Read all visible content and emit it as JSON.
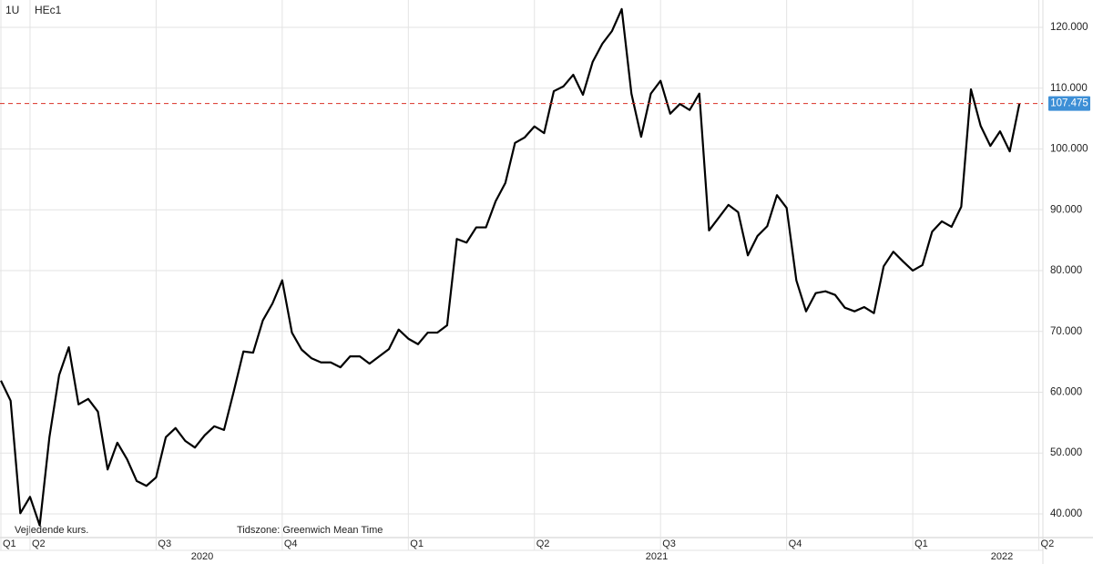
{
  "chart_data": {
    "type": "line",
    "header": [
      "1U",
      "HEc1"
    ],
    "notes": [
      "Vejledende kurs.",
      "Tidszone: Greenwich Mean Time"
    ],
    "categories": [
      "Q1",
      null,
      null,
      "Q2",
      null,
      null,
      null,
      null,
      null,
      null,
      null,
      null,
      null,
      null,
      null,
      null,
      "Q3",
      null,
      null,
      null,
      null,
      null,
      null,
      null,
      null,
      null,
      null,
      null,
      null,
      "Q4",
      null,
      null,
      null,
      null,
      null,
      null,
      null,
      null,
      null,
      null,
      null,
      null,
      "Q1",
      null,
      null,
      null,
      null,
      null,
      null,
      null,
      null,
      null,
      null,
      null,
      null,
      "Q2",
      null,
      null,
      null,
      null,
      null,
      null,
      null,
      null,
      null,
      null,
      null,
      null,
      "Q3",
      null,
      null,
      null,
      null,
      null,
      null,
      null,
      null,
      null,
      null,
      null,
      null,
      "Q4",
      null,
      null,
      null,
      null,
      null,
      null,
      null,
      null,
      null,
      null,
      null,
      null,
      "Q1",
      null,
      null,
      null,
      null,
      null,
      null,
      null,
      null,
      null,
      null,
      null,
      null,
      "Q2"
    ],
    "years": [
      "2020",
      "2021",
      "2022"
    ],
    "series": [
      {
        "name": "HEc1",
        "color": "#000000",
        "values": [
          61.9,
          58.6,
          40.1,
          42.8,
          38.1,
          52.6,
          62.8,
          67.4,
          58.0,
          58.9,
          56.8,
          47.3,
          51.7,
          49.0,
          45.4,
          44.6,
          46.0,
          52.6,
          54.1,
          52.0,
          50.9,
          52.9,
          54.4,
          53.8,
          60.1,
          66.7,
          66.5,
          71.8,
          74.6,
          78.4,
          69.8,
          67.0,
          65.6,
          64.9,
          64.9,
          64.1,
          65.9,
          65.9,
          64.7,
          65.9,
          67.1,
          70.3,
          68.8,
          67.9,
          69.8,
          69.8,
          71.0,
          85.2,
          84.6,
          87.1,
          87.1,
          91.4,
          94.4,
          101.0,
          101.9,
          103.7,
          102.6,
          109.5,
          110.3,
          112.2,
          108.9,
          114.3,
          117.3,
          119.4,
          123.0,
          109.1,
          102.0,
          109.1,
          111.2,
          105.8,
          107.4,
          106.4,
          109.1,
          86.6,
          88.7,
          90.8,
          89.6,
          82.5,
          85.7,
          87.3,
          92.4,
          90.3,
          78.4,
          73.3,
          76.3,
          76.6,
          76.0,
          73.9,
          73.3,
          74.0,
          73.0,
          80.7,
          83.1,
          81.5,
          80.0,
          80.9,
          86.4,
          88.1,
          87.2,
          90.5,
          109.8,
          103.8,
          100.5,
          102.9,
          99.6,
          107.475,
          null,
          null
        ]
      }
    ],
    "last_price": 107.475,
    "last_price_color": "#d93025",
    "ylim": [
      36.1,
      124.49
    ],
    "yticks": [
      {
        "value": 40,
        "label": "40.000"
      },
      {
        "value": 50,
        "label": "50.000"
      },
      {
        "value": 60,
        "label": "60.000"
      },
      {
        "value": 70,
        "label": "70.000"
      },
      {
        "value": 80,
        "label": "80.000"
      },
      {
        "value": 90,
        "label": "90.000"
      },
      {
        "value": 100,
        "label": "100.000"
      },
      {
        "value": 110,
        "label": "110.000"
      },
      {
        "value": 120,
        "label": "120.000"
      }
    ],
    "grid": true
  }
}
